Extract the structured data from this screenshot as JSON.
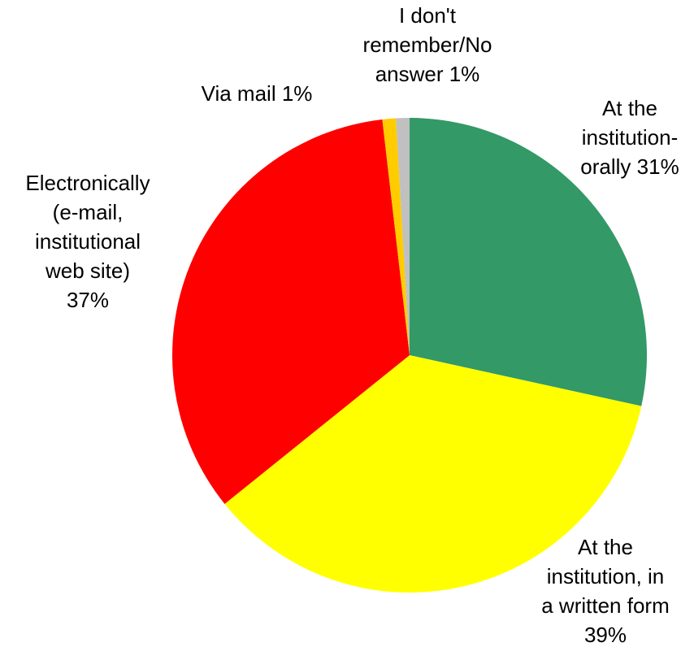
{
  "chart_data": {
    "type": "pie",
    "title": "",
    "start_angle_deg": 0,
    "direction": "clockwise",
    "slices": [
      {
        "label": "At the institution-orally",
        "display_lines": [
          "At the",
          "institution-",
          "orally 31%"
        ],
        "value": 31,
        "color": "#339966"
      },
      {
        "label": "At the institution, in a written form",
        "display_lines": [
          "At the",
          "institution, in",
          "a written form",
          "39%"
        ],
        "value": 39,
        "color": "#FFFF00"
      },
      {
        "label": "Electronically (e-mail, institutional web site)",
        "display_lines": [
          "Electronically",
          "(e-mail,",
          "institutional",
          "web site)",
          "37%"
        ],
        "value": 37,
        "color": "#FF0000"
      },
      {
        "label": "Via mail",
        "display_lines": [
          "Via mail 1%"
        ],
        "value": 1,
        "color": "#FFCC00"
      },
      {
        "label": "I don't remember/No answer",
        "display_lines": [
          "I don't",
          "remember/No",
          "answer 1%"
        ],
        "value": 1,
        "color": "#C0C0C0"
      }
    ]
  }
}
